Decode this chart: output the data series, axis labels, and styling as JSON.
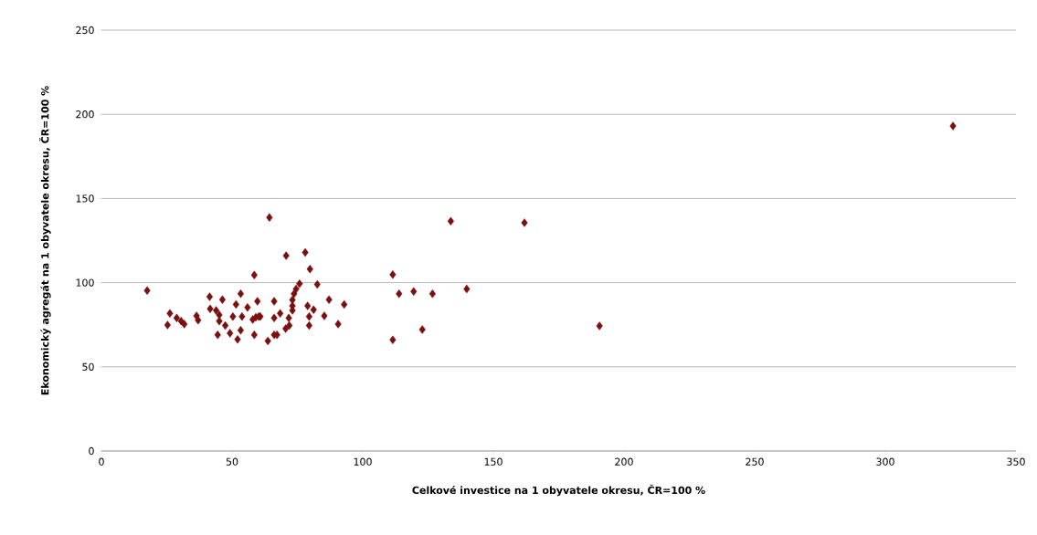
{
  "chart_data": {
    "type": "scatter",
    "xlabel": "Celkové investice na 1 obyvatele okresu, ČR=100 %",
    "ylabel": "Ekonomický agregát na 1 obyvatele okresu, ČR=100 %",
    "xlim": [
      0,
      350
    ],
    "xticks": [
      0,
      50,
      100,
      150,
      200,
      250,
      300,
      350
    ],
    "ylim": [
      0,
      250
    ],
    "yticks": [
      0,
      50,
      100,
      150,
      200,
      250
    ],
    "grid": "y",
    "marker": "diamond",
    "legend": false,
    "series": [
      {
        "color": "#7a1010",
        "x": [
          17.5,
          64.3,
          70.7,
          78,
          79.8,
          58.5,
          82.6,
          75.8,
          74.5,
          73.7,
          73.1,
          73.1,
          73.1,
          71.7,
          71.9,
          70.5,
          67.2,
          63.7,
          68.4,
          66.1,
          66.1,
          59.7,
          58.5,
          60.2,
          57.9,
          55.9,
          53.3,
          51.5,
          50.3,
          53.8,
          53.3,
          52.1,
          49.2,
          46.3,
          45.1,
          44.5,
          47.4,
          41.6,
          41.4,
          43.9,
          45.1,
          36.4,
          37,
          30.5,
          31.7,
          28.8,
          26.2,
          25.3,
          59.1,
          60.8,
          78.9,
          79.5,
          81.2,
          79.5,
          85.3,
          87.1,
          90.6,
          92.9,
          66.1,
          111.5,
          113.9,
          119.5,
          126.7,
          139.8,
          133.7,
          111.5,
          122.8,
          161.9,
          190.6,
          325.9
        ],
        "values": [
          95.3,
          138.7,
          116,
          117.9,
          108.1,
          104.5,
          98.9,
          99.4,
          96.2,
          93.4,
          89.8,
          86.2,
          83.5,
          79,
          74.5,
          72.7,
          69,
          65.4,
          81.7,
          88.9,
          79,
          88.9,
          69,
          79.9,
          78.1,
          85.3,
          93.4,
          87.1,
          79.9,
          79.9,
          71.7,
          66.3,
          70,
          89.9,
          77.2,
          69,
          74.5,
          84.4,
          91.6,
          83.5,
          80.8,
          80.3,
          77.7,
          77.2,
          75.4,
          79,
          81.7,
          74.8,
          79.4,
          79.9,
          86.2,
          79.9,
          83.9,
          74.5,
          80.3,
          89.9,
          75.4,
          87.1,
          69,
          104.8,
          93.4,
          94.7,
          93.4,
          96.2,
          136.5,
          66,
          72.1,
          135.6,
          74.3,
          193
        ]
      }
    ]
  }
}
